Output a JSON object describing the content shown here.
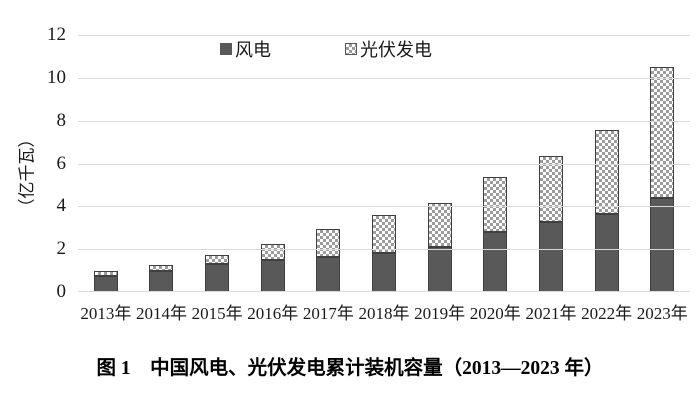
{
  "figure": {
    "caption": "图 1　中国风电、光伏发电累计装机容量（2013—2023 年）"
  },
  "chart_data": {
    "type": "bar",
    "stacked": true,
    "title": "",
    "xlabel": "",
    "ylabel": "（亿千瓦）",
    "ylim": [
      0,
      12
    ],
    "yticks": [
      0,
      2,
      4,
      6,
      8,
      10,
      12
    ],
    "grid": true,
    "legend_position": "top-center",
    "categories": [
      "2013年",
      "2014年",
      "2015年",
      "2016年",
      "2017年",
      "2018年",
      "2019年",
      "2020年",
      "2021年",
      "2022年",
      "2023年"
    ],
    "series": [
      {
        "name": "风电",
        "pattern": "solid",
        "color": "#595959",
        "values": [
          0.77,
          0.96,
          1.29,
          1.49,
          1.64,
          1.84,
          2.1,
          2.82,
          3.28,
          3.65,
          4.41
        ]
      },
      {
        "name": "光伏发电",
        "pattern": "checker",
        "color": "#ffffff",
        "dot_color": "#9c9c9c",
        "values": [
          0.19,
          0.28,
          0.43,
          0.77,
          1.3,
          1.74,
          2.04,
          2.53,
          3.06,
          3.93,
          6.09
        ]
      }
    ]
  },
  "colors": {
    "background": "#ffffff",
    "gridline": "#d9d9d9",
    "bar_border": "#404040",
    "bar_dark": "#595959",
    "text": "#1a1a1a"
  }
}
